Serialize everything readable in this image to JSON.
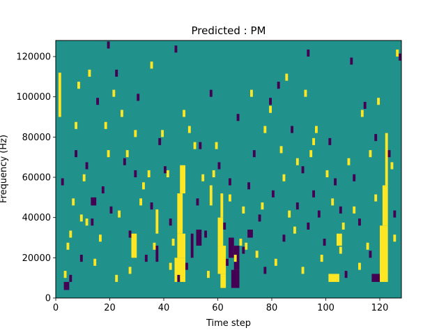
{
  "chart_data": {
    "type": "heatmap",
    "title": "Predicted : PM",
    "xlabel": "Time step",
    "ylabel": "Frequency (Hz)",
    "xlim": [
      0,
      128
    ],
    "ylim": [
      0,
      128000
    ],
    "x_ticks": [
      0,
      20,
      40,
      60,
      80,
      100,
      120
    ],
    "y_ticks": [
      0,
      20000,
      40000,
      60000,
      80000,
      100000,
      120000
    ],
    "y_tick_labels": [
      "0",
      "20000",
      "40000",
      "60000",
      "80000",
      "100000",
      "120000"
    ],
    "grid": false,
    "legend": "none",
    "colormap": "viridis",
    "levels": {
      "background": 0.5,
      "high": 1,
      "low": 0
    },
    "colors": {
      "background": "#21918c",
      "high": "#fde725",
      "low": "#440154"
    },
    "high_regions": [
      [
        44,
        48,
        8000,
        20000
      ],
      [
        45,
        48,
        20000,
        32000
      ],
      [
        45,
        47,
        32000,
        52000
      ],
      [
        46,
        48,
        52000,
        66000
      ],
      [
        61,
        63,
        5000,
        12000
      ],
      [
        60,
        63,
        12000,
        26000
      ],
      [
        60,
        62,
        26000,
        40000
      ],
      [
        61,
        62,
        40000,
        52000
      ],
      [
        120,
        123,
        8000,
        36000
      ],
      [
        121,
        123,
        36000,
        56000
      ],
      [
        122,
        123,
        56000,
        82000
      ],
      [
        101,
        105,
        8000,
        12000
      ],
      [
        1,
        2,
        90000,
        112000
      ],
      [
        28,
        30,
        20000,
        32000
      ],
      [
        57,
        58,
        46000,
        56000
      ],
      [
        104,
        106,
        26000,
        32000
      ],
      [
        37,
        38,
        32000,
        44000
      ]
    ],
    "low_regions": [
      [
        65,
        68,
        5000,
        14000
      ],
      [
        64,
        66,
        20000,
        30000
      ],
      [
        66,
        68,
        14000,
        26000
      ],
      [
        52,
        54,
        26000,
        34000
      ],
      [
        50,
        51,
        20000,
        32000
      ],
      [
        117,
        120,
        8000,
        12000
      ],
      [
        37,
        38,
        18000,
        26000
      ],
      [
        3,
        5,
        4000,
        8000
      ],
      [
        13,
        15,
        46000,
        50000
      ],
      [
        71,
        73,
        30000,
        34000
      ]
    ],
    "high_cells": [
      [
        3,
        10000
      ],
      [
        4,
        24000
      ],
      [
        5,
        30000
      ],
      [
        6,
        46000
      ],
      [
        7,
        84000
      ],
      [
        8,
        104000
      ],
      [
        9,
        38000
      ],
      [
        10,
        58000
      ],
      [
        12,
        110000
      ],
      [
        14,
        16000
      ],
      [
        16,
        28000
      ],
      [
        18,
        84000
      ],
      [
        19,
        70000
      ],
      [
        21,
        100000
      ],
      [
        23,
        40000
      ],
      [
        24,
        90000
      ],
      [
        26,
        70000
      ],
      [
        27,
        12000
      ],
      [
        29,
        80000
      ],
      [
        31,
        46000
      ],
      [
        32,
        54000
      ],
      [
        34,
        60000
      ],
      [
        36,
        24000
      ],
      [
        39,
        80000
      ],
      [
        41,
        60000
      ],
      [
        42,
        14000
      ],
      [
        43,
        26000
      ],
      [
        49,
        82000
      ],
      [
        51,
        74000
      ],
      [
        54,
        58000
      ],
      [
        56,
        10000
      ],
      [
        58,
        60000
      ],
      [
        59,
        74000
      ],
      [
        64,
        48000
      ],
      [
        66,
        18000
      ],
      [
        69,
        42000
      ],
      [
        70,
        24000
      ],
      [
        72,
        100000
      ],
      [
        74,
        20000
      ],
      [
        76,
        44000
      ],
      [
        77,
        82000
      ],
      [
        79,
        92000
      ],
      [
        81,
        16000
      ],
      [
        83,
        72000
      ],
      [
        84,
        58000
      ],
      [
        86,
        40000
      ],
      [
        88,
        32000
      ],
      [
        89,
        66000
      ],
      [
        91,
        12000
      ],
      [
        92,
        100000
      ],
      [
        94,
        70000
      ],
      [
        96,
        82000
      ],
      [
        98,
        18000
      ],
      [
        100,
        60000
      ],
      [
        102,
        46000
      ],
      [
        106,
        34000
      ],
      [
        108,
        66000
      ],
      [
        110,
        42000
      ],
      [
        112,
        14000
      ],
      [
        113,
        90000
      ],
      [
        115,
        24000
      ],
      [
        116,
        70000
      ],
      [
        118,
        48000
      ],
      [
        124,
        64000
      ],
      [
        125,
        28000
      ],
      [
        126,
        120000
      ],
      [
        11,
        36000
      ],
      [
        22,
        8000
      ],
      [
        35,
        114000
      ],
      [
        47,
        90000
      ],
      [
        68,
        26000
      ],
      [
        85,
        108000
      ],
      [
        95,
        76000
      ],
      [
        105,
        22000
      ],
      [
        119,
        96000
      ]
    ],
    "low_cells": [
      [
        2,
        56000
      ],
      [
        5,
        8000
      ],
      [
        7,
        70000
      ],
      [
        11,
        64000
      ],
      [
        13,
        36000
      ],
      [
        15,
        96000
      ],
      [
        17,
        52000
      ],
      [
        20,
        42000
      ],
      [
        22,
        110000
      ],
      [
        25,
        66000
      ],
      [
        27,
        30000
      ],
      [
        30,
        98000
      ],
      [
        33,
        18000
      ],
      [
        35,
        44000
      ],
      [
        38,
        76000
      ],
      [
        40,
        62000
      ],
      [
        42,
        36000
      ],
      [
        44,
        122000
      ],
      [
        48,
        14000
      ],
      [
        52,
        46000
      ],
      [
        55,
        30000
      ],
      [
        57,
        100000
      ],
      [
        60,
        64000
      ],
      [
        62,
        34000
      ],
      [
        64,
        56000
      ],
      [
        67,
        88000
      ],
      [
        69,
        22000
      ],
      [
        71,
        54000
      ],
      [
        73,
        70000
      ],
      [
        75,
        38000
      ],
      [
        77,
        12000
      ],
      [
        80,
        50000
      ],
      [
        82,
        104000
      ],
      [
        84,
        28000
      ],
      [
        87,
        82000
      ],
      [
        89,
        44000
      ],
      [
        91,
        62000
      ],
      [
        93,
        34000
      ],
      [
        95,
        50000
      ],
      [
        97,
        40000
      ],
      [
        99,
        26000
      ],
      [
        101,
        76000
      ],
      [
        103,
        56000
      ],
      [
        105,
        42000
      ],
      [
        107,
        10000
      ],
      [
        110,
        58000
      ],
      [
        112,
        36000
      ],
      [
        114,
        94000
      ],
      [
        116,
        20000
      ],
      [
        118,
        78000
      ],
      [
        123,
        70000
      ],
      [
        125,
        40000
      ],
      [
        127,
        118000
      ],
      [
        9,
        18000
      ],
      [
        19,
        124000
      ],
      [
        29,
        60000
      ],
      [
        45,
        8000
      ],
      [
        53,
        74000
      ],
      [
        63,
        16000
      ],
      [
        79,
        96000
      ],
      [
        93,
        120000
      ],
      [
        109,
        116000
      ]
    ]
  }
}
